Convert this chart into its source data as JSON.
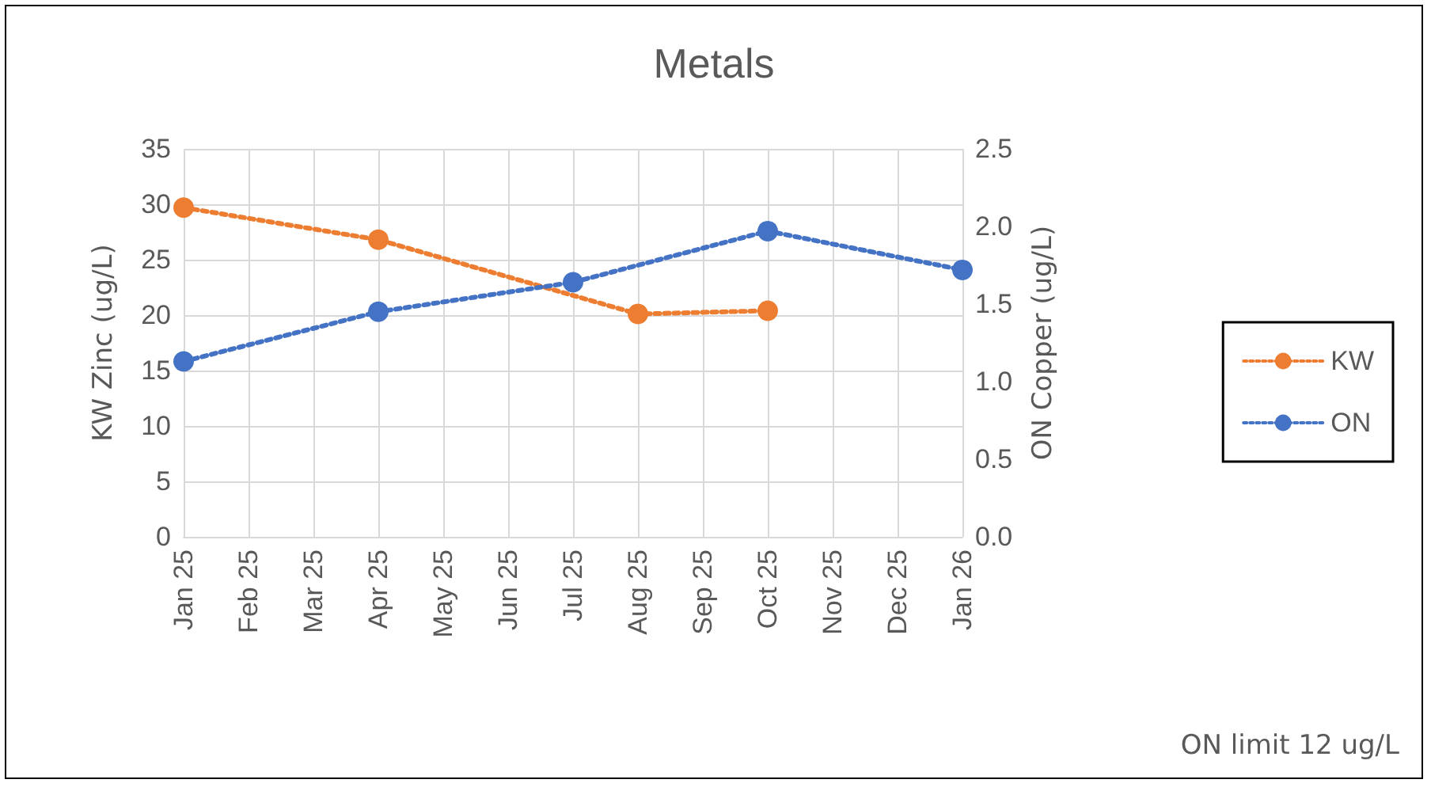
{
  "chart_data": {
    "type": "line",
    "title": "Metals",
    "ylabel": "KW Zinc (ug/L)",
    "y2label": "ON Copper (ug/L)",
    "categories": [
      "Jan 25",
      "Feb 25",
      "Mar 25",
      "Apr 25",
      "May 25",
      "Jun 25",
      "Jul 25",
      "Aug 25",
      "Sep 25",
      "Oct 25",
      "Nov 25",
      "Dec 25",
      "Jan 26"
    ],
    "series": [
      {
        "name": "KW",
        "color": "#ed7d31",
        "values": [
          29.7,
          null,
          null,
          26.8,
          null,
          null,
          null,
          20.1,
          null,
          20.4,
          null,
          null,
          null
        ]
      },
      {
        "name": "ON",
        "color": "#4472c4",
        "axis": "y2",
        "values": [
          1.13,
          null,
          null,
          1.45,
          null,
          null,
          1.64,
          null,
          null,
          1.97,
          null,
          null,
          1.72
        ]
      }
    ],
    "ylim": [
      0,
      35
    ],
    "yticks": [
      0,
      5,
      10,
      15,
      20,
      25,
      30,
      35
    ],
    "y2lim": [
      0,
      2.5
    ],
    "y2ticks": [
      {
        "value": 0,
        "label": "0.0"
      },
      {
        "value": 0.5,
        "label": "0.5"
      },
      {
        "value": 1,
        "label": "1.0"
      },
      {
        "value": 1.5,
        "label": "1.5"
      },
      {
        "value": 2,
        "label": "2.0"
      },
      {
        "value": 2.5,
        "label": "2.5"
      }
    ],
    "grid": true,
    "legend": "right",
    "marker": "circle",
    "line_style": "dotted",
    "annotations": [
      "ON limit 12 ug/L"
    ]
  }
}
